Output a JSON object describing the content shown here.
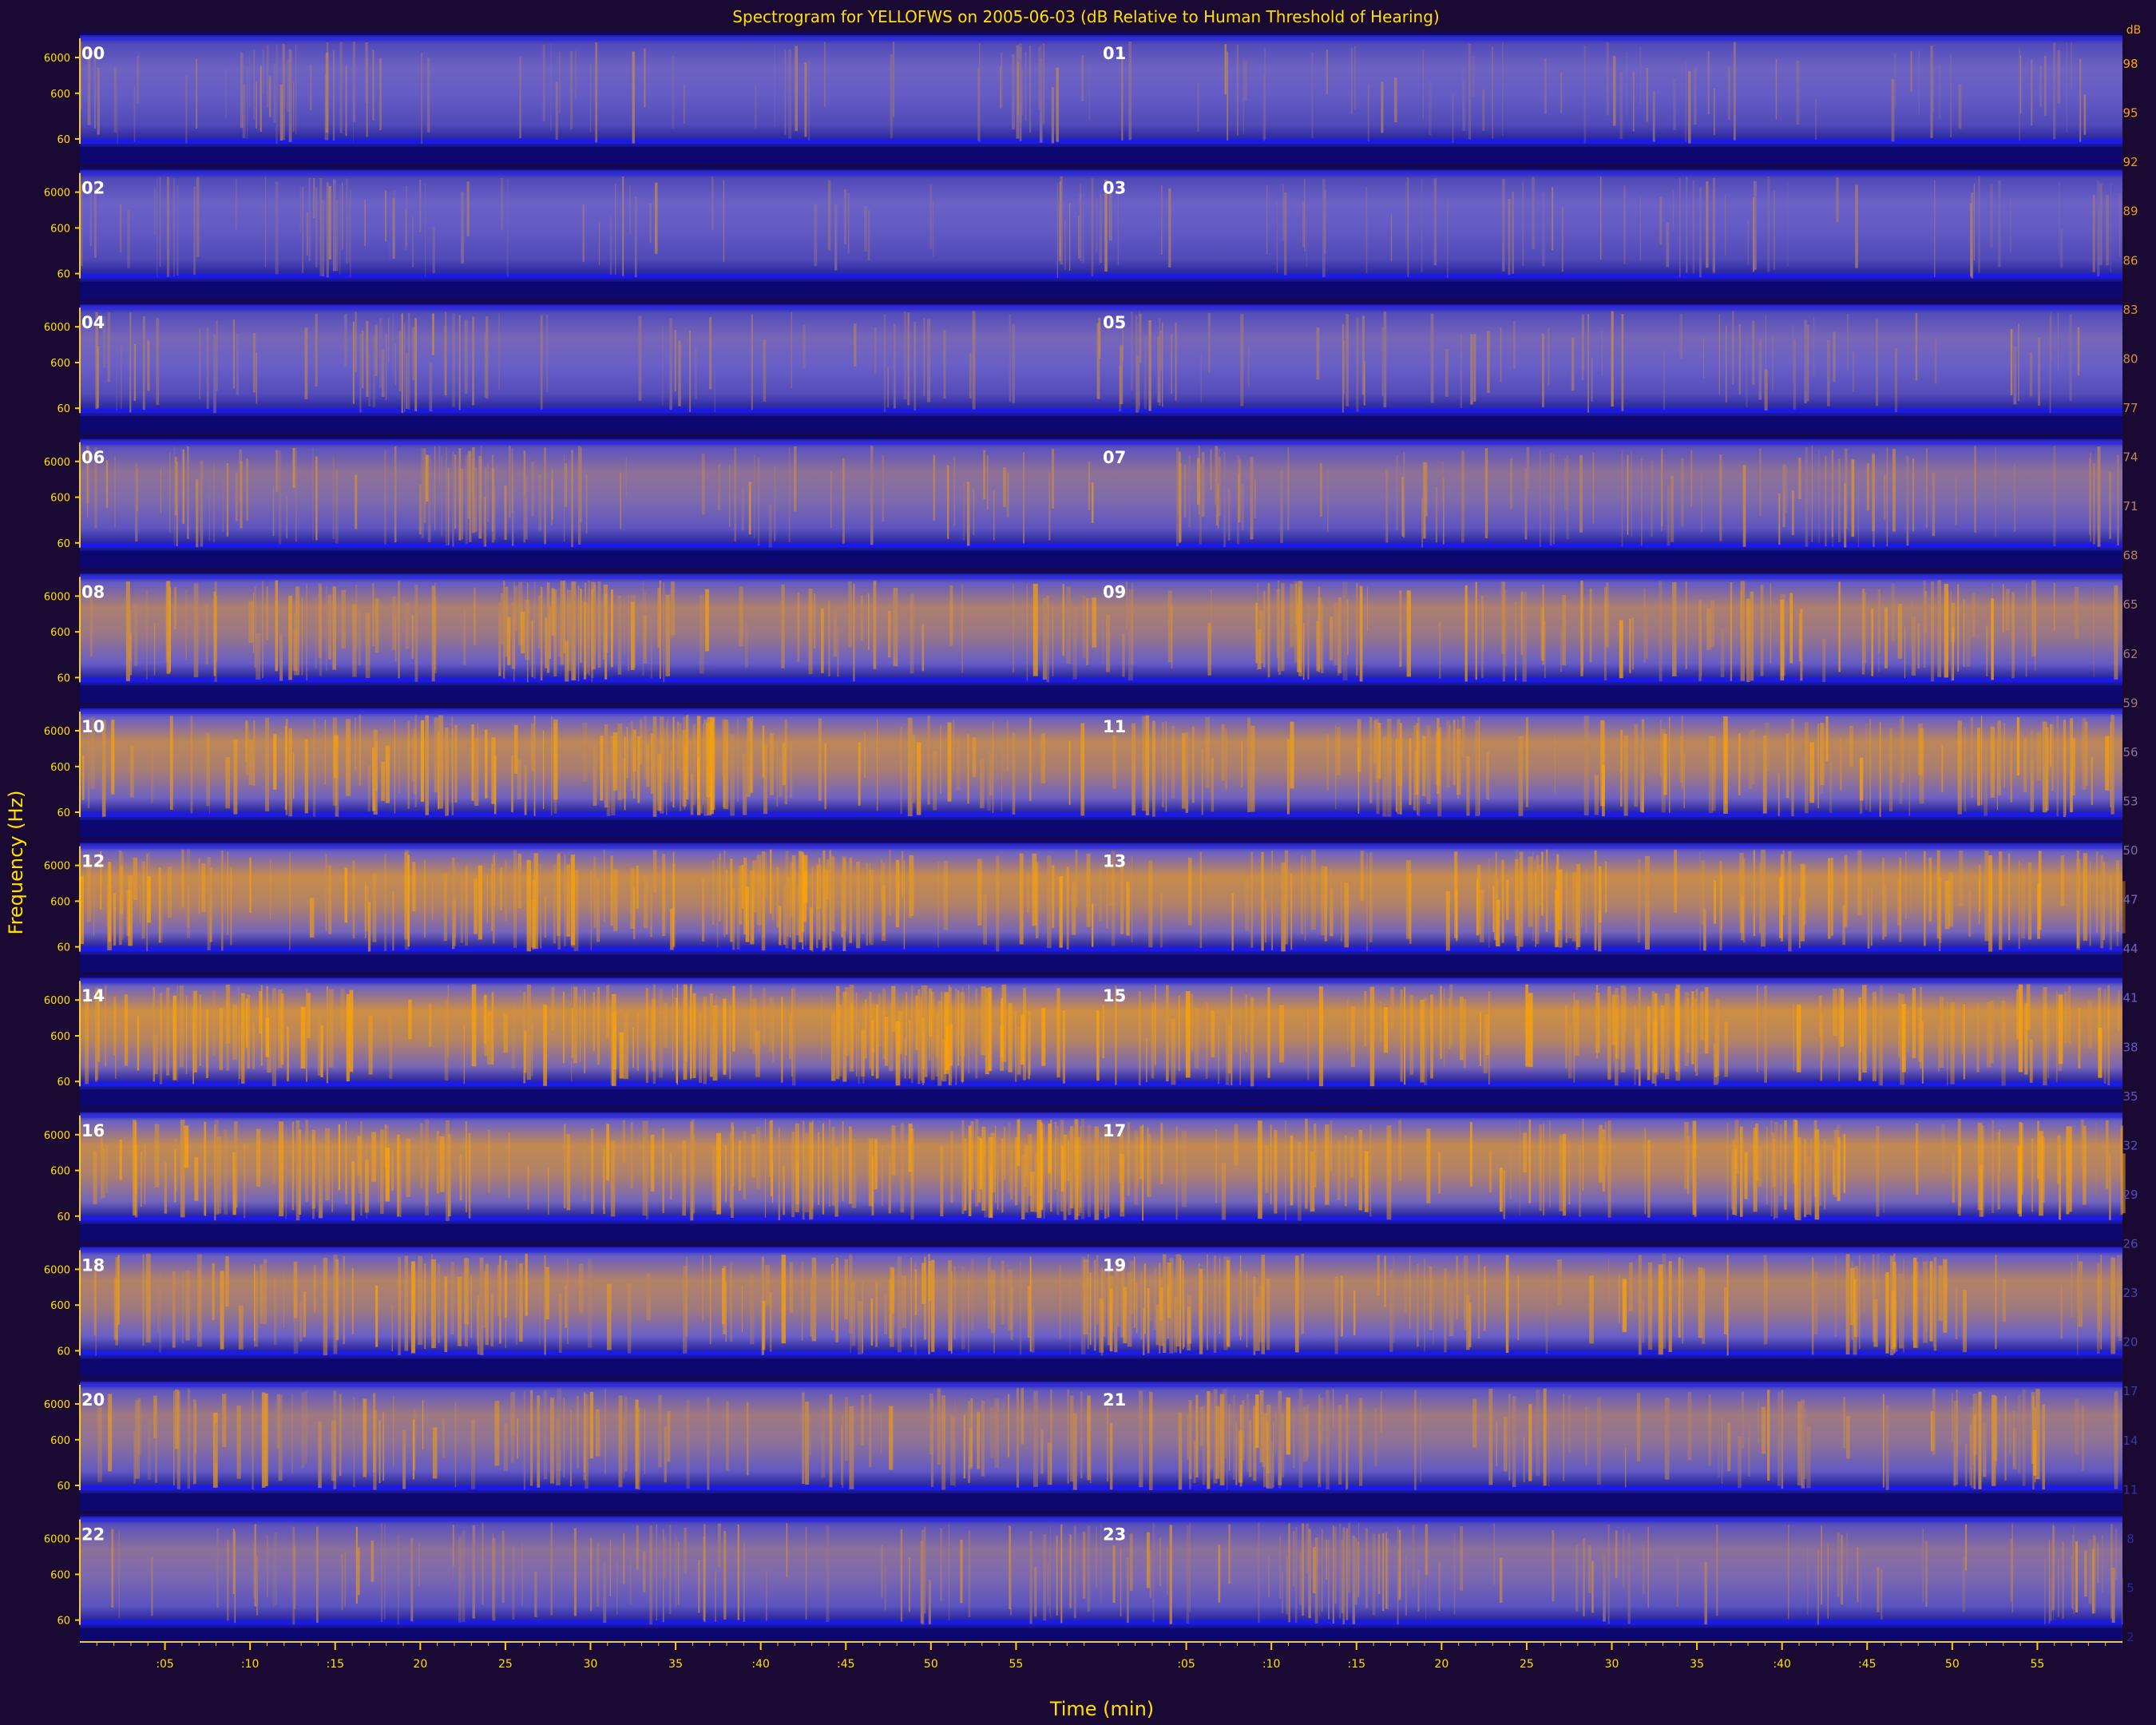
{
  "chart_data": {
    "type": "heatmap",
    "title": "Spectrogram for YELLOFWS on 2005-06-03 (dB Relative to Human Threshold of Hearing)",
    "xlabel": "Time (min)",
    "ylabel": "Frequency (Hz)",
    "x_tick_labels": [
      ":05",
      ":10",
      ":15",
      "20",
      "25",
      "30",
      "35",
      ":40",
      ":45",
      "50",
      "55"
    ],
    "y_tick_labels": [
      "60",
      "600",
      "6000"
    ],
    "rows": [
      {
        "left_hour": "00",
        "right_hour": "01",
        "intensity": 0.3
      },
      {
        "left_hour": "02",
        "right_hour": "03",
        "intensity": 0.28
      },
      {
        "left_hour": "04",
        "right_hour": "05",
        "intensity": 0.35
      },
      {
        "left_hour": "06",
        "right_hour": "07",
        "intensity": 0.5
      },
      {
        "left_hour": "08",
        "right_hour": "09",
        "intensity": 0.68
      },
      {
        "left_hour": "10",
        "right_hour": "11",
        "intensity": 0.78
      },
      {
        "left_hour": "12",
        "right_hour": "13",
        "intensity": 0.84
      },
      {
        "left_hour": "14",
        "right_hour": "15",
        "intensity": 0.88
      },
      {
        "left_hour": "16",
        "right_hour": "17",
        "intensity": 0.82
      },
      {
        "left_hour": "18",
        "right_hour": "19",
        "intensity": 0.72
      },
      {
        "left_hour": "20",
        "right_hour": "21",
        "intensity": 0.6
      },
      {
        "left_hour": "22",
        "right_hour": "23",
        "intensity": 0.48
      }
    ],
    "colorbar_labels": [
      "98",
      "95",
      "92",
      "89",
      "86",
      "83",
      "80",
      "77",
      "74",
      "71",
      "68",
      "65",
      "62",
      "59",
      "56",
      "53",
      "50",
      "47",
      "44",
      "41",
      "38",
      "35",
      "32",
      "29",
      "26",
      "23",
      "20",
      "17",
      "14",
      "11",
      "8",
      "5",
      "2"
    ],
    "colorbar_top_label": "dB",
    "colors": {
      "background": "#1a0a33",
      "axis": "#ffd000",
      "label": "#ffe000",
      "hour_label": "#ffffff",
      "low": "#0a0a8c",
      "mid": "#6a60c8",
      "high": "#ffa500"
    }
  }
}
